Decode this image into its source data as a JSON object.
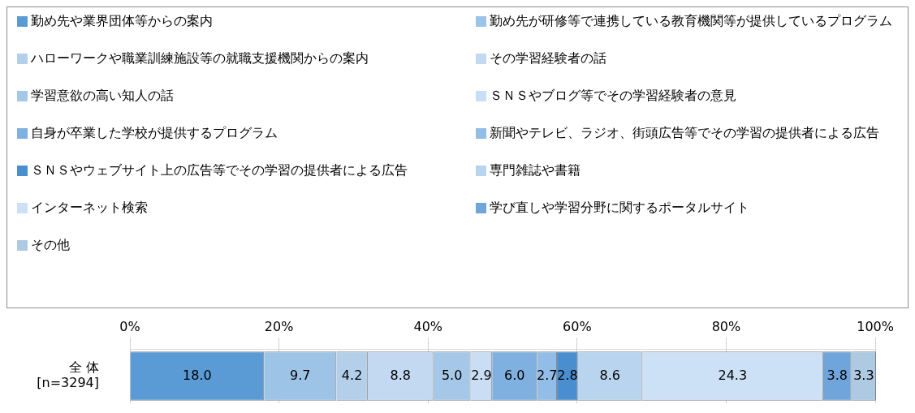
{
  "chart_data": {
    "type": "bar",
    "orientation": "horizontal",
    "stacked": true,
    "categories": [
      "全 体\n[n=3294]"
    ],
    "series": [
      {
        "name": "勤め先や業界団体等からの案内",
        "color": "#5b9bd5",
        "values": [
          18.0
        ],
        "value_labels": [
          "18.0"
        ]
      },
      {
        "name": "勤め先が研修等で連携している教育機関等が提供しているプログラム",
        "color": "#9dc3e6",
        "values": [
          9.7
        ],
        "value_labels": [
          "9.7"
        ]
      },
      {
        "name": "ハローワークや職業訓練施設等の就職支援機関からの案内",
        "color": "#b4cfe9",
        "values": [
          4.2
        ],
        "value_labels": [
          "4.2"
        ]
      },
      {
        "name": "その学習経験者の話",
        "color": "#c2d9f1",
        "values": [
          8.8
        ],
        "value_labels": [
          "8.8"
        ]
      },
      {
        "name": "学習意欲の高い知人の話",
        "color": "#a6c8e8",
        "values": [
          5.0
        ],
        "value_labels": [
          "5.0"
        ]
      },
      {
        "name": "ＳＮＳやブログ等でその学習経験者の意見",
        "color": "#c9def4",
        "values": [
          2.9
        ],
        "value_labels": [
          "2.9"
        ]
      },
      {
        "name": "自身が卒業した学校が提供するプログラム",
        "color": "#7fb0df",
        "values": [
          6.0
        ],
        "value_labels": [
          "6.0"
        ]
      },
      {
        "name": "新聞やテレビ、ラジオ、街頭広告等でその学習の提供者による広告",
        "color": "#92bde6",
        "values": [
          2.7
        ],
        "value_labels": [
          "2.7"
        ]
      },
      {
        "name": "ＳＮＳやウェブサイト上の広告等でその学習の提供者による広告",
        "color": "#4a8ed0",
        "values": [
          2.8
        ],
        "value_labels": [
          "2.8"
        ]
      },
      {
        "name": "専門雑誌や書籍",
        "color": "#b9d4ef",
        "values": [
          8.6
        ],
        "value_labels": [
          "8.6"
        ]
      },
      {
        "name": "インターネット検索",
        "color": "#cce0f6",
        "values": [
          24.3
        ],
        "value_labels": [
          "24.3"
        ]
      },
      {
        "name": "学び直しや学習分野に関するポータルサイト",
        "color": "#6fa5db",
        "values": [
          3.8
        ],
        "value_labels": [
          "3.8"
        ]
      },
      {
        "name": "その他",
        "color": "#aec9e2",
        "values": [
          3.3
        ],
        "value_labels": [
          "3.3"
        ]
      }
    ],
    "xlim": [
      0,
      100.1
    ],
    "xticks": [
      {
        "value": 0,
        "label": "0%"
      },
      {
        "value": 20,
        "label": "20%"
      },
      {
        "value": 40,
        "label": "40%"
      },
      {
        "value": 60,
        "label": "60%"
      },
      {
        "value": 80,
        "label": "80%"
      },
      {
        "value": 100,
        "label": "100%"
      }
    ],
    "grid": "x",
    "legend": "top",
    "data_labels": true
  }
}
